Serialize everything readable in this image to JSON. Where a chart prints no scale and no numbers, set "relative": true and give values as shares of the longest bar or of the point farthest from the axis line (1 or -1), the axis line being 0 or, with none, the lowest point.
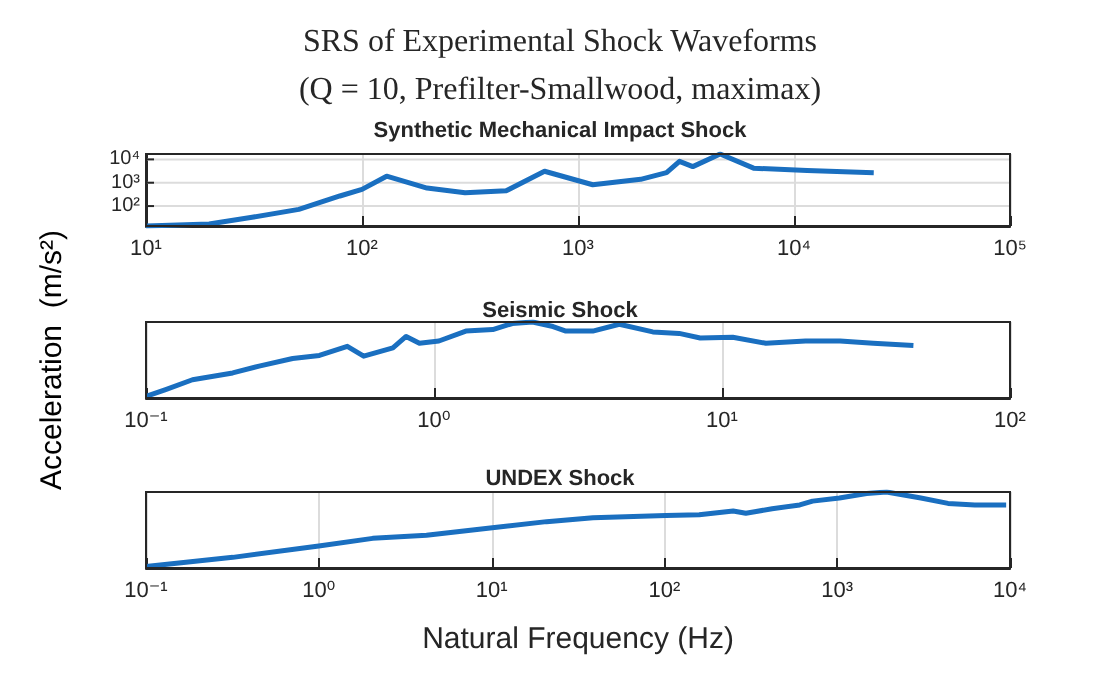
{
  "chart_data": [
    {
      "type": "line",
      "title": "SRS of Experimental Shock Waveforms",
      "subtitle": "(Q = 10, Prefilter-Smallwood, maximax)",
      "annotations": [
        "Synthetic Mechanical Impact Shock"
      ],
      "log": "xy",
      "grid": true,
      "color": "#1a6fc0",
      "x": [
        10,
        19.6,
        31,
        51,
        79,
        100,
        130,
        200,
        300,
        465,
        700,
        1170,
        1950,
        2570,
        2950,
        3400,
        4550,
        6500,
        11500,
        23400
      ],
      "values": [
        14,
        17,
        33,
        72,
        270,
        520,
        1900,
        590,
        370,
        450,
        3100,
        820,
        1400,
        2700,
        8200,
        4900,
        17000,
        4200,
        3300,
        2700
      ],
      "xlim": [
        10,
        100000
      ],
      "ylim": [
        14,
        17000
      ],
      "xticks": [
        {
          "value": 10,
          "label": "10¹"
        },
        {
          "value": 100,
          "label": "10²"
        },
        {
          "value": 1000,
          "label": "10³"
        },
        {
          "value": 10000,
          "label": "10⁴"
        },
        {
          "value": 100000,
          "label": "10⁵"
        }
      ],
      "yticks": [
        {
          "value": 100,
          "label": "10²"
        },
        {
          "value": 1000,
          "label": "10³"
        },
        {
          "value": 10000,
          "label": "10⁴"
        }
      ]
    },
    {
      "type": "line",
      "title": "Seismic Shock",
      "ylabel": "Acceleration  (m/s²)",
      "relative": true,
      "log": "x",
      "grid": "x",
      "color": "#1a6fc0",
      "x": [
        0.1,
        0.117,
        0.145,
        0.2,
        0.247,
        0.323,
        0.4,
        0.5,
        0.57,
        0.72,
        0.8,
        0.89,
        1.04,
        1.29,
        1.6,
        1.87,
        2.2,
        2.59,
        2.87,
        3.56,
        4.4,
        5.75,
        7.1,
        8.4,
        10.9,
        14.2,
        19.5,
        25.7,
        33.5,
        46.2
      ],
      "values": [
        0.02,
        0.11,
        0.24,
        0.33,
        0.42,
        0.52,
        0.56,
        0.68,
        0.55,
        0.66,
        0.81,
        0.72,
        0.75,
        0.88,
        0.9,
        0.98,
        1,
        0.94,
        0.88,
        0.88,
        0.97,
        0.87,
        0.85,
        0.79,
        0.8,
        0.72,
        0.75,
        0.75,
        0.72,
        0.69
      ],
      "xlim": [
        0.1,
        100
      ],
      "xticks": [
        {
          "value": 0.1,
          "label": "10⁻¹"
        },
        {
          "value": 1,
          "label": "10⁰"
        },
        {
          "value": 10,
          "label": "10¹"
        },
        {
          "value": 100,
          "label": "10²"
        }
      ]
    },
    {
      "type": "line",
      "title": "UNDEX Shock",
      "xlabel": "Natural Frequency (Hz)",
      "relative": true,
      "log": "x",
      "grid": "x",
      "color": "#1a6fc0",
      "x": [
        0.1,
        0.318,
        1.0,
        2.05,
        4.2,
        10.1,
        20.8,
        38.6,
        102,
        159,
        250,
        296,
        420,
        607,
        720,
        1030,
        1480,
        1930,
        3050,
        4380,
        6260,
        9500
      ],
      "values": [
        0.02,
        0.14,
        0.29,
        0.39,
        0.43,
        0.53,
        0.61,
        0.66,
        0.69,
        0.7,
        0.75,
        0.72,
        0.78,
        0.83,
        0.88,
        0.92,
        0.98,
        1,
        0.92,
        0.85,
        0.83,
        0.83
      ],
      "xlim": [
        0.1,
        10000
      ],
      "xticks": [
        {
          "value": 0.1,
          "label": "10⁻¹"
        },
        {
          "value": 1,
          "label": "10⁰"
        },
        {
          "value": 10,
          "label": "10¹"
        },
        {
          "value": 100,
          "label": "10²"
        },
        {
          "value": 1000,
          "label": "10³"
        },
        {
          "value": 10000,
          "label": "10⁴"
        }
      ]
    }
  ]
}
